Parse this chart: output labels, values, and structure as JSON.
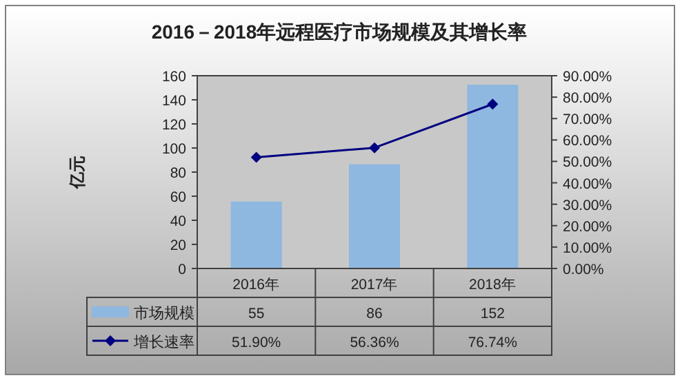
{
  "chart_data": {
    "type": "bar",
    "title": "2016－2018年远程医疗市场规模及其增长率",
    "ylabel": "亿元",
    "categories": [
      "2016年",
      "2017年",
      "2018年"
    ],
    "series": [
      {
        "name": "市场规模",
        "color": "#8fb8e0",
        "values": [
          55,
          86,
          152
        ],
        "value_labels": [
          "55",
          "86",
          "152"
        ]
      },
      {
        "name": "增长速率",
        "type": "line",
        "axis": "y2",
        "color": "#000080",
        "values": [
          51.9,
          56.36,
          76.74
        ],
        "value_labels": [
          "51.90%",
          "56.36%",
          "76.74%"
        ]
      }
    ],
    "ylim": [
      0,
      160
    ],
    "yticks": [
      0,
      20,
      40,
      60,
      80,
      100,
      120,
      140,
      160
    ],
    "y2lim": [
      0,
      90
    ],
    "y2ticks": [
      {
        "value": 0,
        "label": "0.00%"
      },
      {
        "value": 10,
        "label": "10.00%"
      },
      {
        "value": 20,
        "label": "20.00%"
      },
      {
        "value": 30,
        "label": "30.00%"
      },
      {
        "value": 40,
        "label": "40.00%"
      },
      {
        "value": 50,
        "label": "50.00%"
      },
      {
        "value": 60,
        "label": "60.00%"
      },
      {
        "value": 70,
        "label": "70.00%"
      },
      {
        "value": 80,
        "label": "80.00%"
      },
      {
        "value": 90,
        "label": "90.00%"
      }
    ],
    "marker": "diamond",
    "legend": "bottom left",
    "grid": false
  }
}
